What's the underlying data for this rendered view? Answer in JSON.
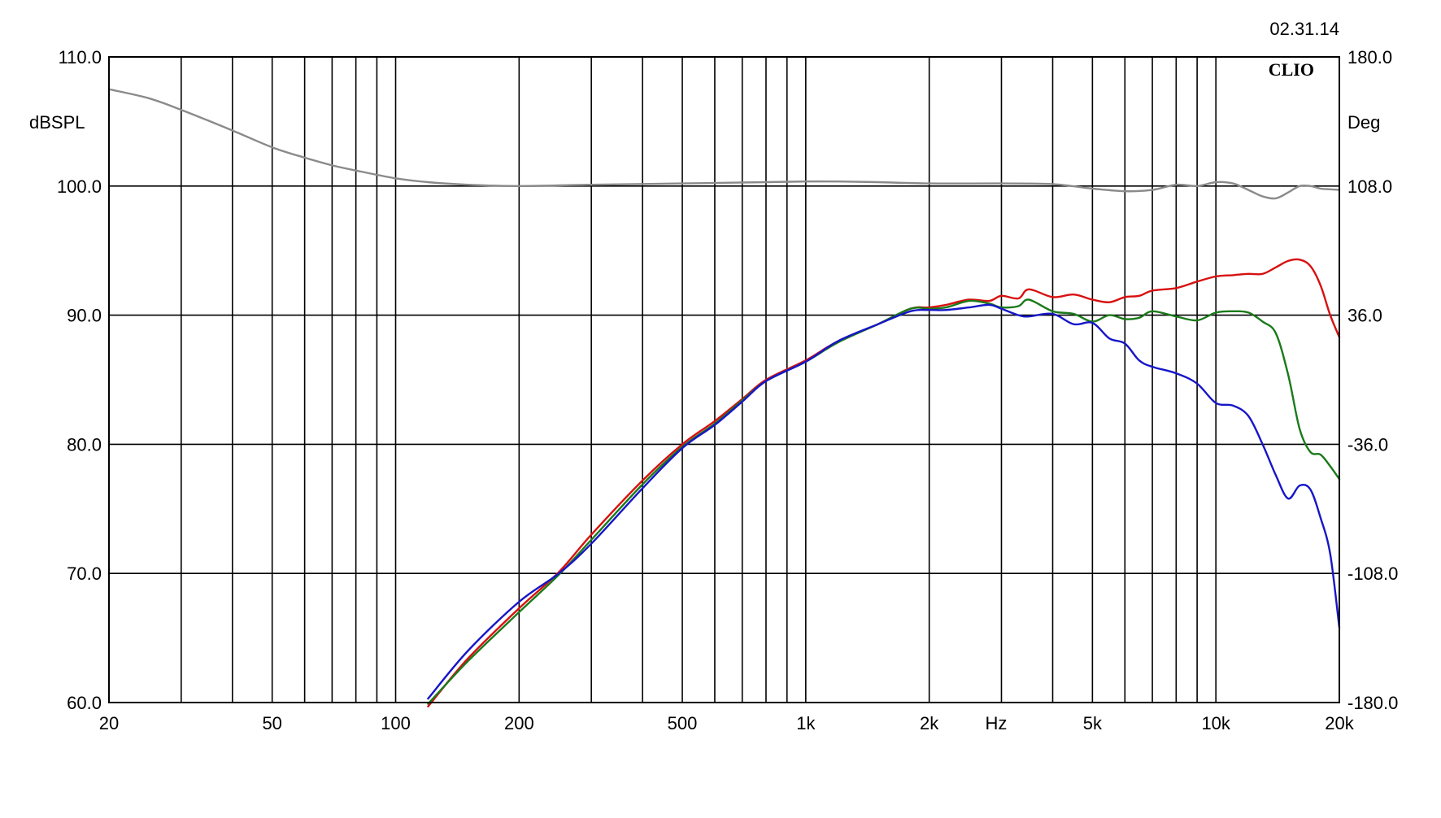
{
  "date": "02.31.14",
  "brand": "CLIO",
  "chart_data": {
    "type": "line",
    "xscale": "log",
    "xlim": [
      20,
      20000
    ],
    "xlabel": "Hz",
    "ylabel": "dBSPL",
    "ylim": [
      60,
      110
    ],
    "y2label": "Deg",
    "y2lim": [
      -180,
      180
    ],
    "grid": true,
    "x_tick_labels": [
      "20",
      "50",
      "100",
      "200",
      "500",
      "1k",
      "2k",
      "5k",
      "10k",
      "20k"
    ],
    "x_tick_values": [
      20,
      50,
      100,
      200,
      500,
      1000,
      2000,
      5000,
      10000,
      20000
    ],
    "y_tick_labels": [
      "60.0",
      "70.0",
      "80.0",
      "90.0",
      "100.0",
      "110.0"
    ],
    "y_tick_values": [
      60,
      70,
      80,
      90,
      100,
      110
    ],
    "y2_tick_labels": [
      "-180.0",
      "-108.0",
      "-36.0",
      "36.0",
      "108.0",
      "180.0"
    ],
    "y2_tick_values": [
      -180,
      -108,
      -36,
      36,
      108,
      180
    ],
    "series": [
      {
        "color": "#8a8a8a",
        "x": [
          20,
          25,
          30,
          40,
          50,
          60,
          70,
          80,
          100,
          120,
          150,
          200,
          300,
          500,
          800,
          1000,
          1200,
          1500,
          2000,
          3000,
          4000,
          5000,
          6000,
          7000,
          8000,
          9000,
          10000,
          11000,
          12000,
          13000,
          14000,
          15000,
          16000,
          17000,
          18000,
          19000,
          20000
        ],
        "values": [
          107.5,
          106.8,
          105.9,
          104.3,
          103.0,
          102.2,
          101.6,
          101.2,
          100.6,
          100.3,
          100.1,
          100.0,
          100.1,
          100.2,
          100.3,
          100.35,
          100.35,
          100.3,
          100.2,
          100.2,
          100.15,
          99.8,
          99.6,
          99.7,
          100.1,
          100.0,
          100.3,
          100.2,
          99.7,
          99.2,
          99.05,
          99.5,
          100.0,
          100.0,
          99.8,
          99.75,
          99.7
        ]
      },
      {
        "color": "#d81010",
        "x": [
          120,
          150,
          200,
          250,
          300,
          400,
          500,
          600,
          700,
          800,
          1000,
          1200,
          1500,
          1800,
          2000,
          2200,
          2500,
          2800,
          3000,
          3300,
          3500,
          4000,
          4500,
          5000,
          5500,
          6000,
          6500,
          7000,
          8000,
          9000,
          10000,
          11000,
          12000,
          13000,
          14000,
          15000,
          16000,
          17000,
          18000,
          19000,
          20000
        ],
        "values": [
          59.7,
          63.4,
          67.3,
          70.1,
          73.0,
          77.2,
          80.0,
          81.8,
          83.5,
          85.0,
          86.5,
          88.0,
          89.3,
          90.5,
          90.6,
          90.8,
          91.2,
          91.1,
          91.5,
          91.3,
          92.0,
          91.4,
          91.6,
          91.2,
          91.0,
          91.4,
          91.5,
          91.9,
          92.1,
          92.6,
          93.0,
          93.1,
          93.2,
          93.2,
          93.7,
          94.2,
          94.3,
          93.8,
          92.3,
          90.0,
          88.3
        ]
      },
      {
        "color": "#1a7a1a",
        "x": [
          120,
          150,
          200,
          250,
          300,
          400,
          500,
          600,
          700,
          800,
          1000,
          1200,
          1500,
          1800,
          2000,
          2200,
          2500,
          2800,
          3000,
          3300,
          3500,
          4000,
          4500,
          5000,
          5500,
          6000,
          6500,
          7000,
          8000,
          9000,
          10000,
          11000,
          12000,
          13000,
          14000,
          15000,
          16000,
          17000,
          18000,
          19000,
          20000
        ],
        "values": [
          59.9,
          63.2,
          67.0,
          69.9,
          72.6,
          76.9,
          79.8,
          81.6,
          83.4,
          84.9,
          86.4,
          87.9,
          89.3,
          90.5,
          90.5,
          90.6,
          91.1,
          90.9,
          90.6,
          90.7,
          91.2,
          90.3,
          90.1,
          89.5,
          90.0,
          89.7,
          89.8,
          90.3,
          89.9,
          89.6,
          90.2,
          90.3,
          90.2,
          89.5,
          88.6,
          85.4,
          81.2,
          79.4,
          79.2,
          78.3,
          77.3
        ]
      },
      {
        "color": "#1616c8",
        "x": [
          120,
          150,
          200,
          250,
          300,
          400,
          500,
          600,
          700,
          800,
          1000,
          1200,
          1500,
          1800,
          2000,
          2200,
          2500,
          2800,
          3000,
          3300,
          3500,
          4000,
          4500,
          5000,
          5500,
          6000,
          6500,
          7000,
          8000,
          9000,
          10000,
          11000,
          12000,
          13000,
          14000,
          15000,
          16000,
          17000,
          18000,
          19000,
          20000
        ],
        "values": [
          60.3,
          64.0,
          67.8,
          70.0,
          72.3,
          76.6,
          79.7,
          81.5,
          83.3,
          84.9,
          86.4,
          88.0,
          89.3,
          90.3,
          90.4,
          90.4,
          90.6,
          90.8,
          90.5,
          90.0,
          89.9,
          90.1,
          89.3,
          89.4,
          88.2,
          87.8,
          86.5,
          86.0,
          85.5,
          84.7,
          83.2,
          83.0,
          82.2,
          80.0,
          77.6,
          75.8,
          76.8,
          76.5,
          74.3,
          71.5,
          65.8
        ]
      }
    ]
  }
}
